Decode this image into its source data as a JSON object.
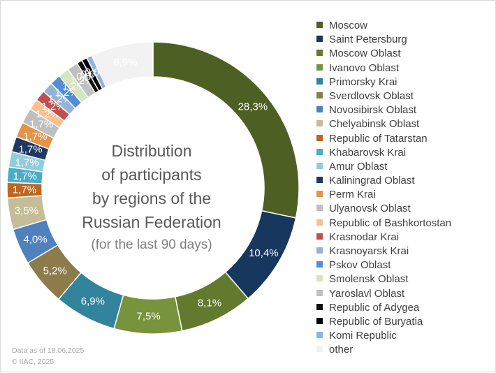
{
  "title_lines": [
    "Distribution",
    "of participants",
    "by regions of the",
    "Russian Federation"
  ],
  "subtitle": "(for the last 90 days)",
  "footer": {
    "date_note": "Data as of 18.06.2025",
    "copyright": "© IIAC, 2025"
  },
  "chart_data": {
    "type": "pie",
    "variant": "donut",
    "legend_position": "right",
    "series": [
      {
        "name": "Moscow",
        "value": 28.3,
        "label": "28,3%",
        "color": "#4e5f23"
      },
      {
        "name": "Saint Petersburg",
        "value": 10.4,
        "label": "10,4%",
        "color": "#17375e"
      },
      {
        "name": "Moscow Oblast",
        "value": 8.1,
        "label": "8,1%",
        "color": "#627a2e"
      },
      {
        "name": "Ivanovo Oblast",
        "value": 7.5,
        "label": "7,5%",
        "color": "#77933c"
      },
      {
        "name": "Primorsky Krai",
        "value": 6.9,
        "label": "6,9%",
        "color": "#31849b"
      },
      {
        "name": "Sverdlovsk Oblast",
        "value": 5.2,
        "label": "5,2%",
        "color": "#8c7b4b"
      },
      {
        "name": "Novosibirsk Oblast",
        "value": 4.0,
        "label": "4,0%",
        "color": "#4f81bd"
      },
      {
        "name": "Chelyabinsk Oblast",
        "value": 3.5,
        "label": "3,5%",
        "color": "#c4bd97"
      },
      {
        "name": "Republic of Tatarstan",
        "value": 1.7,
        "label": "1,7%",
        "color": "#c0651f"
      },
      {
        "name": "Khabarovsk Krai",
        "value": 1.7,
        "label": "1,7%",
        "color": "#4bacc6"
      },
      {
        "name": "Amur Oblast",
        "value": 1.7,
        "label": "1,7%",
        "color": "#93cddd"
      },
      {
        "name": "Kaliningrad Oblast",
        "value": 1.7,
        "label": "1,7%",
        "color": "#1f3864"
      },
      {
        "name": "Perm Krai",
        "value": 1.7,
        "label": "1,7%",
        "color": "#e59345"
      },
      {
        "name": "Ulyanovsk Oblast",
        "value": 1.7,
        "label": "1,7%",
        "color": "#bfbfbf"
      },
      {
        "name": "Republic of Bashkortostan",
        "value": 1.2,
        "label": "1,2%",
        "color": "#fac090"
      },
      {
        "name": "Krasnodar Krai",
        "value": 1.2,
        "label": "1,2%",
        "color": "#c0504d"
      },
      {
        "name": "Krasnoyarsk Krai",
        "value": 1.2,
        "label": "1,2%",
        "color": "#95b3d7"
      },
      {
        "name": "Pskov Oblast",
        "value": 1.2,
        "label": "1,2%",
        "color": "#538dd5"
      },
      {
        "name": "Smolensk Oblast",
        "value": 1.2,
        "label": "1,2%",
        "color": "#d7e4bc"
      },
      {
        "name": "Yaroslavl Oblast",
        "value": 1.2,
        "label": "1,2%",
        "color": "#c0c0c0"
      },
      {
        "name": "Republic of Adygea",
        "value": 0.6,
        "label": "0,6%",
        "color": "#0d0d0d"
      },
      {
        "name": "Republic of Buryatia",
        "value": 0.6,
        "label": "0,6%",
        "color": "#000000"
      },
      {
        "name": "Komi Republic",
        "value": 0.6,
        "label": "0,6%",
        "color": "#8db4e2"
      },
      {
        "name": "other",
        "value": 6.9,
        "label": "6,9%",
        "color": "#f2f2f2"
      }
    ]
  }
}
